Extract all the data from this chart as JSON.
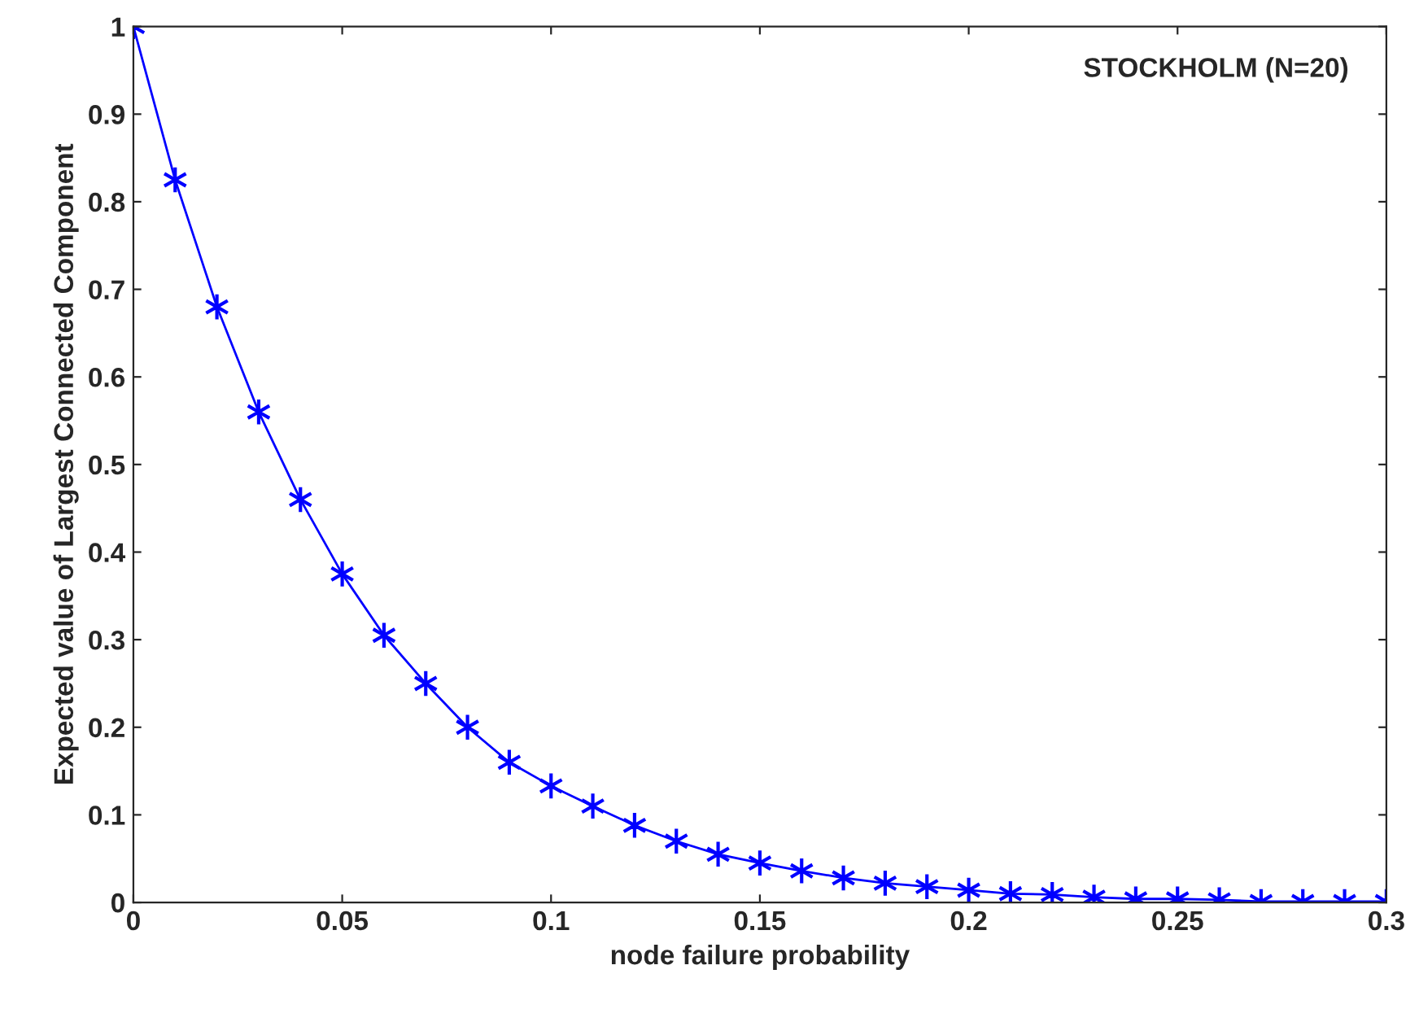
{
  "chart_data": {
    "type": "line",
    "xlabel": "node failure probability",
    "ylabel": "Expected value of Largest Connected Component",
    "annotations": [
      "STOCKHOLM (N=20)"
    ],
    "x": [
      0,
      0.01,
      0.02,
      0.03,
      0.04,
      0.05,
      0.06,
      0.07,
      0.08,
      0.09,
      0.1,
      0.11,
      0.12,
      0.13,
      0.14,
      0.15,
      0.16,
      0.17,
      0.18,
      0.19,
      0.2,
      0.21,
      0.22,
      0.23,
      0.24,
      0.25,
      0.26,
      0.27,
      0.28,
      0.29,
      0.3
    ],
    "series": [
      {
        "color": "#0000ff",
        "values": [
          1,
          0.825,
          0.68,
          0.56,
          0.46,
          0.375,
          0.305,
          0.25,
          0.2,
          0.16,
          0.133,
          0.11,
          0.088,
          0.07,
          0.055,
          0.045,
          0.036,
          0.028,
          0.022,
          0.018,
          0.014,
          0.01,
          0.009,
          0.006,
          0.004,
          0.004,
          0.003,
          0.001,
          0.001,
          0.001,
          0.001
        ]
      }
    ],
    "xlim": [
      0,
      0.3
    ],
    "ylim": [
      0,
      1
    ],
    "xticks": [
      0,
      0.05,
      0.1,
      0.15,
      0.2,
      0.25,
      0.3
    ],
    "yticks": [
      0,
      0.1,
      0.2,
      0.3,
      0.4,
      0.5,
      0.6,
      0.7,
      0.8,
      0.9,
      1
    ],
    "marker": "cross",
    "line_style": "solid",
    "grid": false,
    "legend": false
  }
}
